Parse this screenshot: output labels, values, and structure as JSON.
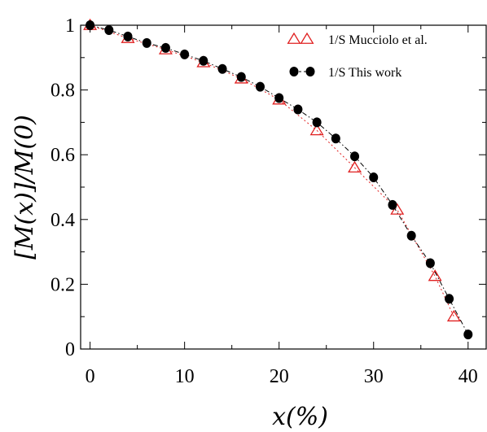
{
  "chart_data": {
    "type": "scatter",
    "xlabel": "x(%)",
    "ylabel": "[M(x)]/M(0)",
    "xlim": [
      -1,
      42
    ],
    "ylim": [
      0,
      1
    ],
    "xticks": [
      0,
      10,
      20,
      30,
      40
    ],
    "xtick_labels": [
      "0",
      "10",
      "20",
      "30",
      "40"
    ],
    "yticks": [
      0,
      0.2,
      0.4,
      0.6,
      0.8,
      1
    ],
    "ytick_labels": [
      "0",
      "0.2",
      "0.4",
      "0.6",
      "0.8",
      "1"
    ],
    "grid": false,
    "legend_position": "top-right",
    "series": [
      {
        "name": "1/S Mucciolo et al.",
        "marker": "open-triangle",
        "color": "#e02020",
        "line": "dotted",
        "x": [
          0,
          4,
          8,
          12,
          16,
          20,
          24,
          28,
          32.5,
          36.5,
          38.5
        ],
        "y": [
          1.0,
          0.96,
          0.925,
          0.885,
          0.835,
          0.77,
          0.675,
          0.56,
          0.43,
          0.225,
          0.1
        ]
      },
      {
        "name": "1/S This work",
        "marker": "filled-circle",
        "color": "#000000",
        "line": "dash-dot",
        "x": [
          0,
          2,
          4,
          6,
          8,
          10,
          12,
          14,
          16,
          18,
          20,
          22,
          24,
          26,
          28,
          30,
          32,
          34,
          36,
          38,
          40
        ],
        "y": [
          1.0,
          0.985,
          0.965,
          0.945,
          0.93,
          0.91,
          0.89,
          0.865,
          0.84,
          0.81,
          0.775,
          0.74,
          0.7,
          0.65,
          0.595,
          0.53,
          0.445,
          0.35,
          0.265,
          0.155,
          0.045
        ]
      }
    ]
  }
}
